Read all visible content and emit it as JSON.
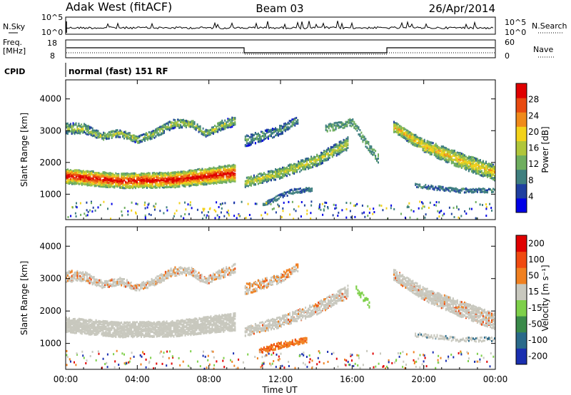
{
  "header": {
    "station": "Adak West (fitACF)",
    "beam": "Beam 03",
    "date": "26/Apr/2014"
  },
  "top_panels": {
    "nsky_label": "N.Sky",
    "nsearch_label": "N.Search",
    "noise_ticks_left": [
      "10^5",
      "10^0"
    ],
    "noise_ticks_right": [
      "10^5",
      "10^0"
    ],
    "freq_label": "Freq.",
    "freq_unit": "[MHz]",
    "freq_ticks": [
      "18",
      "8"
    ],
    "nave_label": "Nave",
    "nave_ticks": [
      "60",
      "0"
    ],
    "cpid_label": "CPID",
    "mode_text": "normal (fast) 151 RF"
  },
  "chart_data": [
    {
      "type": "heatmap",
      "title": "Power",
      "ylabel": "Slant Range [km]",
      "xlabel": "",
      "x_ticks": [
        "00:00",
        "04:00",
        "08:00",
        "12:00",
        "16:00",
        "20:00",
        "00:00"
      ],
      "y_ticks": [
        1000,
        2000,
        3000,
        4000
      ],
      "ylim": [
        200,
        4600
      ],
      "xlim_hours": [
        0,
        24
      ],
      "colorbar": {
        "label": "Power [dB]",
        "ticks": [
          "4",
          "8",
          "12",
          "16",
          "20",
          "24",
          "28"
        ],
        "range": [
          0,
          30
        ],
        "colors": [
          "#0000e6",
          "#1f3fa0",
          "#3f7f7f",
          "#6fae5f",
          "#b0c63a",
          "#f3d21a",
          "#f08a1a",
          "#e84a10",
          "#e00000"
        ]
      }
    },
    {
      "type": "heatmap",
      "title": "Velocity",
      "ylabel": "Slant Range [km]",
      "xlabel": "Time UT",
      "x_ticks": [
        "00:00",
        "04:00",
        "08:00",
        "12:00",
        "16:00",
        "20:00",
        "00:00"
      ],
      "y_ticks": [
        1000,
        2000,
        3000,
        4000
      ],
      "ylim": [
        200,
        4600
      ],
      "xlim_hours": [
        0,
        24
      ],
      "colorbar": {
        "label": "Velocity [m s⁻¹]",
        "ticks": [
          "200",
          "100",
          "50",
          "15",
          "-15",
          "-50",
          "-100",
          "-200"
        ],
        "colors": [
          "#1a2fb0",
          "#2a6a8a",
          "#3a8a4a",
          "#7ed04a",
          "#c8c8be",
          "#f08020",
          "#f04a10",
          "#e00000"
        ]
      }
    }
  ]
}
